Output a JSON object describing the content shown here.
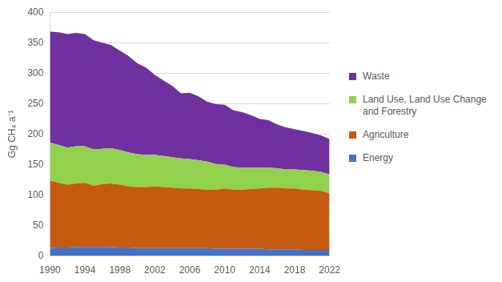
{
  "chart_data": {
    "type": "area",
    "stacked": true,
    "grid": true,
    "legend": "right",
    "y_label": "Gg CH₄ a⁻¹",
    "x": [
      1990,
      1991,
      1992,
      1993,
      1994,
      1995,
      1996,
      1997,
      1998,
      1999,
      2000,
      2001,
      2002,
      2003,
      2004,
      2005,
      2006,
      2007,
      2008,
      2009,
      2010,
      2011,
      2012,
      2013,
      2014,
      2015,
      2016,
      2017,
      2018,
      2019,
      2020,
      2021,
      2022
    ],
    "xlim": [
      1990,
      2022
    ],
    "xticks": [
      1990,
      1994,
      1998,
      2002,
      2006,
      2010,
      2014,
      2018,
      2022
    ],
    "ylim": [
      0,
      400
    ],
    "yticks": [
      0,
      50,
      100,
      150,
      200,
      250,
      300,
      350,
      400
    ],
    "series": [
      {
        "name": "Energy",
        "color": "#4472c4",
        "values": [
          13,
          14,
          14,
          15,
          15,
          15,
          15,
          15,
          14,
          14,
          13,
          13,
          13,
          13,
          13,
          13,
          13,
          13,
          13,
          12,
          12,
          12,
          12,
          12,
          12,
          11,
          11,
          11,
          11,
          10,
          10,
          10,
          10
        ]
      },
      {
        "name": "Agriculture",
        "color": "#c55a11",
        "values": [
          111,
          106,
          103,
          104,
          105,
          100,
          103,
          104,
          103,
          100,
          100,
          100,
          101,
          100,
          99,
          98,
          98,
          97,
          96,
          97,
          99,
          97,
          97,
          98,
          99,
          101,
          101,
          100,
          100,
          99,
          98,
          97,
          93
        ]
      },
      {
        "name": "Land Use, Land Use Change and Forestry",
        "color": "#92d050",
        "values": [
          62,
          62,
          61,
          61,
          60,
          60,
          58,
          58,
          57,
          56,
          54,
          53,
          52,
          51,
          50,
          49,
          48,
          47,
          46,
          42,
          39,
          37,
          36,
          35,
          34,
          33,
          32,
          31,
          31,
          32,
          32,
          31,
          31
        ]
      },
      {
        "name": "Waste",
        "color": "#7030a0",
        "values": [
          182,
          185,
          186,
          186,
          184,
          179,
          174,
          169,
          163,
          158,
          149,
          143,
          131,
          124,
          117,
          107,
          109,
          105,
          98,
          98,
          98,
          93,
          91,
          86,
          80,
          78,
          72,
          69,
          66,
          64,
          62,
          60,
          58
        ]
      }
    ]
  }
}
